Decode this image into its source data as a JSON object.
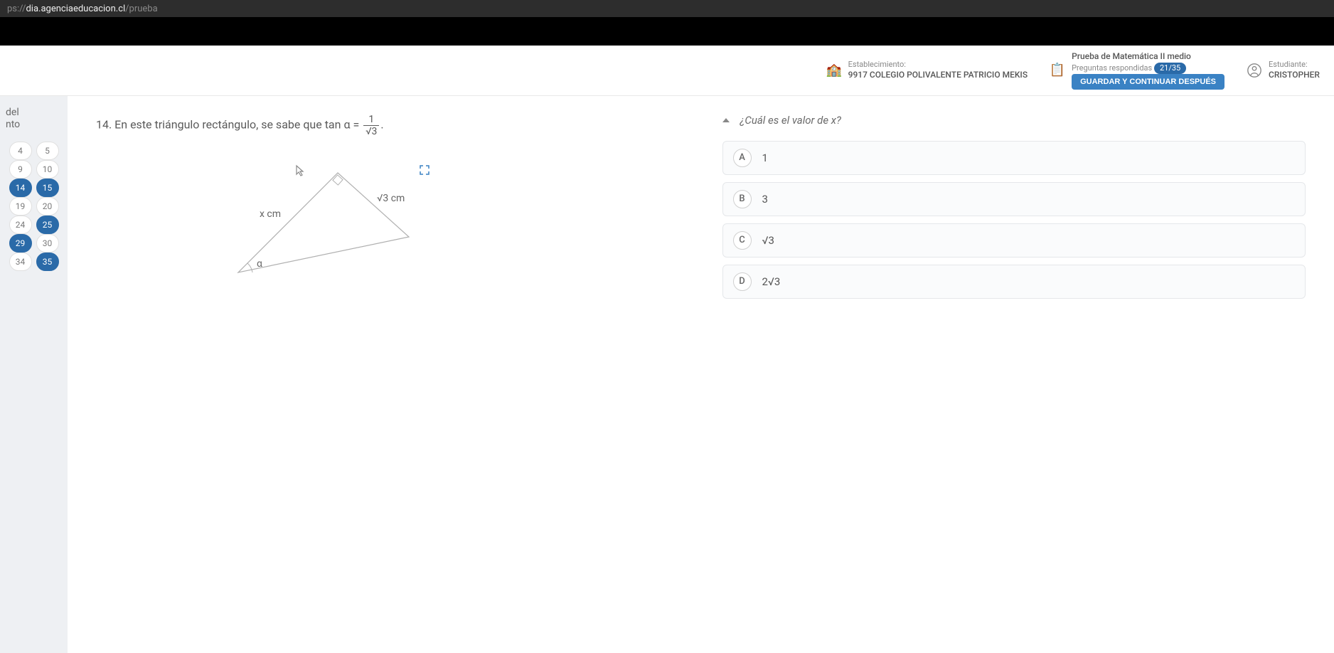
{
  "browser": {
    "protocol": "ps://",
    "domain": "dia.agenciaeducacion.cl",
    "path": "/prueba"
  },
  "topbar": {
    "establishment": {
      "label": "Establecimiento:",
      "value": "9917 COLEGIO POLIVALENTE PATRICIO MEKIS"
    },
    "test": {
      "label": "Prueba de Matemática II medio",
      "progress_label": "Preguntas respondidas",
      "progress_value": "21/35"
    },
    "save_button": "GUARDAR Y CONTINUAR DESPUÉS",
    "student": {
      "label": "Estudiante:",
      "value": "CRISTOPHER"
    }
  },
  "sidebar": {
    "title_line1": "del",
    "title_line2": "nto",
    "rows": [
      [
        {
          "n": "4",
          "active": false
        },
        {
          "n": "5",
          "active": false
        }
      ],
      [
        {
          "n": "9",
          "active": false
        },
        {
          "n": "10",
          "active": false
        }
      ],
      [
        {
          "n": "14",
          "active": true
        },
        {
          "n": "15",
          "active": true
        }
      ],
      [
        {
          "n": "19",
          "active": false
        },
        {
          "n": "20",
          "active": false
        }
      ],
      [
        {
          "n": "24",
          "active": false
        },
        {
          "n": "25",
          "active": true
        }
      ],
      [
        {
          "n": "29",
          "active": true
        },
        {
          "n": "30",
          "active": false
        }
      ],
      [
        {
          "n": "34",
          "active": false
        },
        {
          "n": "35",
          "active": true
        }
      ]
    ],
    "collapse": "‹"
  },
  "question": {
    "number": "14.",
    "text_pre": "En este triángulo rectángulo, se sabe que tan α = ",
    "frac_num": "1",
    "frac_den": "√3",
    "period": ".",
    "triangle": {
      "side_x": "x cm",
      "side_r": "√3 cm",
      "angle": "α",
      "stroke": "#b0b0b0",
      "fill": "none"
    }
  },
  "answer": {
    "prompt": "¿Cuál es el valor de x?",
    "options": [
      {
        "letter": "A",
        "text": "1"
      },
      {
        "letter": "B",
        "text": "3"
      },
      {
        "letter": "C",
        "text": "√3"
      },
      {
        "letter": "D",
        "text": "2√3"
      }
    ]
  }
}
